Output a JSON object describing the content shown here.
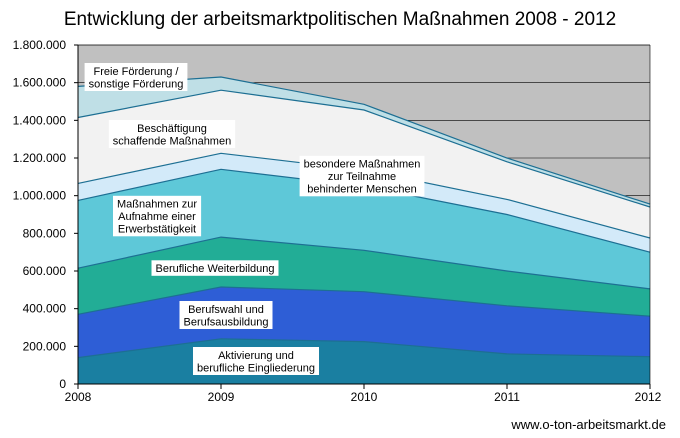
{
  "chart_data": {
    "type": "area",
    "stacked": true,
    "title": "Entwicklung der arbeitsmarktpolitischen Maßnahmen 2008 - 2012",
    "xlabel": "",
    "ylabel": "",
    "x": [
      "2008",
      "2009",
      "2010",
      "2011",
      "2012"
    ],
    "ylim": [
      0,
      1800000
    ],
    "yticks": [
      "0",
      "200.000",
      "400.000",
      "600.000",
      "800.000",
      "1.000.000",
      "1.200.000",
      "1.400.000",
      "1.600.000",
      "1.800.000"
    ],
    "grid": true,
    "legend": "none",
    "series": [
      {
        "name": [
          "Aktivierung und",
          "berufliche Eingliederung"
        ],
        "values": [
          140000,
          240000,
          225000,
          160000,
          145000
        ],
        "color": "#1a7fa1"
      },
      {
        "name": [
          "Berufswahl und",
          "Berufsausbildung"
        ],
        "values": [
          230000,
          275000,
          265000,
          255000,
          215000
        ],
        "color": "#2e5ed6"
      },
      {
        "name": [
          "Berufliche Weiterbildung"
        ],
        "values": [
          245000,
          265000,
          220000,
          185000,
          145000
        ],
        "color": "#22ad96"
      },
      {
        "name": [
          "Maßnahmen zur",
          "Aufnahme einer",
          "Erwerbstätigkeit"
        ],
        "values": [
          360000,
          360000,
          340000,
          300000,
          195000
        ],
        "color": "#5ec8d8"
      },
      {
        "name": [
          "besondere Maßnahmen",
          "zur Teilnahme",
          "behinderter Menschen"
        ],
        "values": [
          90000,
          85000,
          85000,
          80000,
          75000
        ],
        "color": "#d3eaf9"
      },
      {
        "name": [
          "Beschäftigung",
          "schaffende Maßnahmen"
        ],
        "values": [
          350000,
          335000,
          320000,
          200000,
          165000
        ],
        "color": "#f2f2f2"
      },
      {
        "name": [
          "Freie Förderung /",
          "sonstige Förderung"
        ],
        "values": [
          165000,
          70000,
          30000,
          20000,
          15000
        ],
        "color": "#bfdfe6"
      }
    ],
    "source": "www.o-ton-arbeitsmarkt.de"
  }
}
